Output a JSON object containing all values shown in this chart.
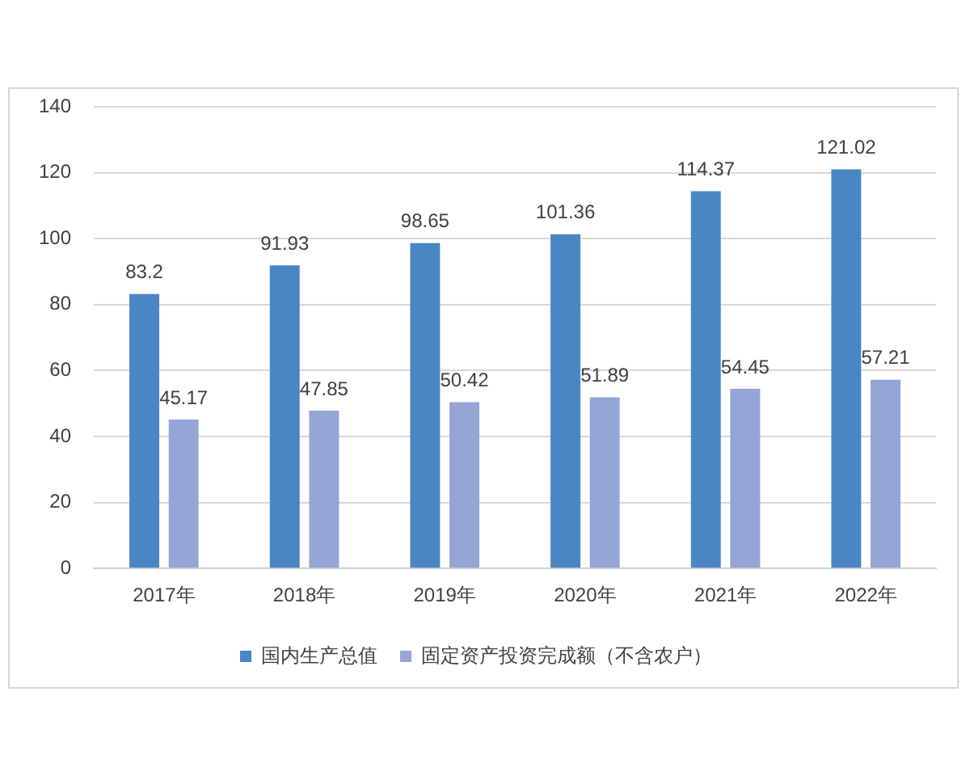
{
  "chart_data": {
    "type": "bar",
    "categories": [
      "2017年",
      "2018年",
      "2019年",
      "2020年",
      "2021年",
      "2022年"
    ],
    "series": [
      {
        "name": "国内生产总值",
        "color": "#4a86c4",
        "values": [
          83.2,
          91.93,
          98.65,
          101.36,
          114.37,
          121.02
        ]
      },
      {
        "name": "固定资产投资完成额（不含农户）",
        "color": "#94a5d6",
        "values": [
          45.17,
          47.85,
          50.42,
          51.89,
          54.45,
          57.21
        ]
      }
    ],
    "ylim": [
      0,
      140
    ],
    "yticks": [
      0,
      20,
      40,
      60,
      80,
      100,
      120,
      140
    ],
    "grid": "y",
    "legend": "bottom",
    "data_labels": true
  }
}
